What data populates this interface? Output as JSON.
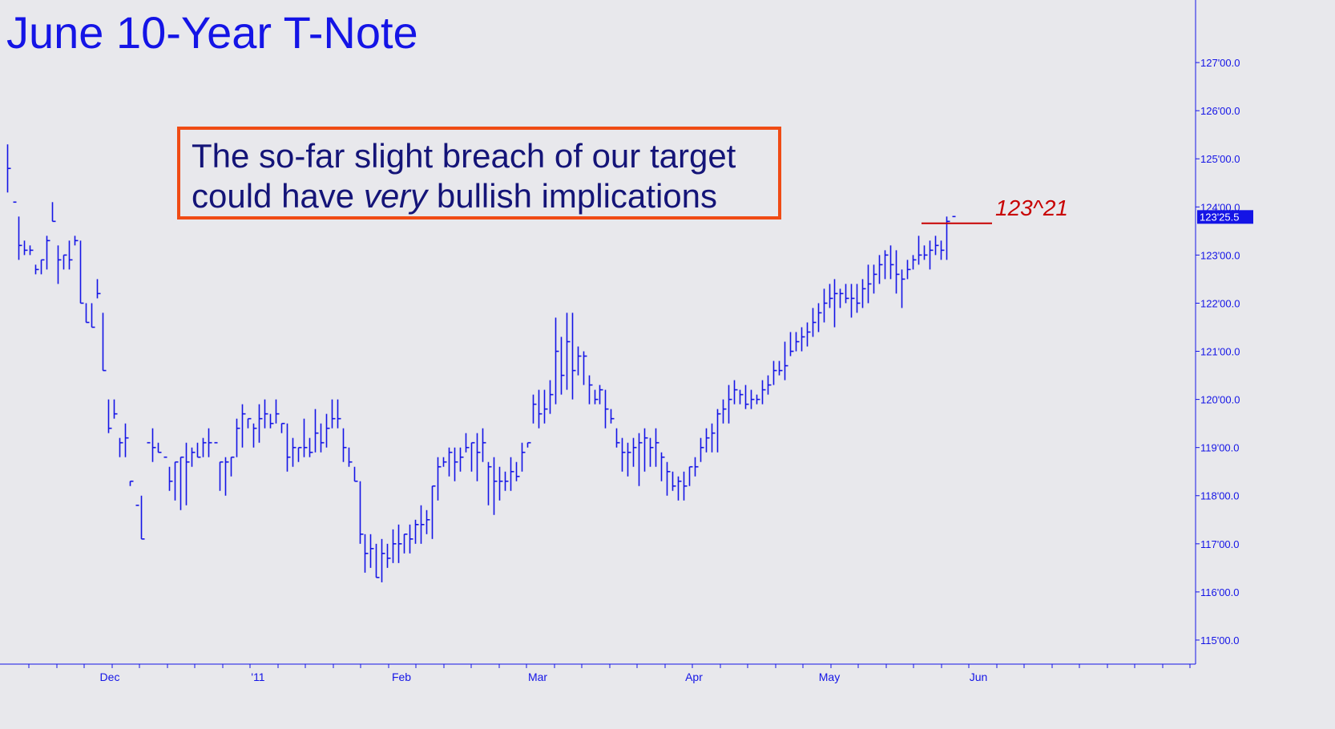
{
  "chart_data": {
    "type": "ohlc",
    "title": "June 10-Year T-Note",
    "annotation_line1": "The so-far slight breach of our target",
    "annotation_line2_pre": "could have ",
    "annotation_line2_em": "very",
    "annotation_line2_post": " bullish implications",
    "target_label": "123^21",
    "target_value": 123.66,
    "last_price_label": "123'25.5",
    "last_price": 123.8,
    "y_ticks": [
      {
        "value": 115,
        "label": "115'00.0"
      },
      {
        "value": 116,
        "label": "116'00.0"
      },
      {
        "value": 117,
        "label": "117'00.0"
      },
      {
        "value": 118,
        "label": "118'00.0"
      },
      {
        "value": 119,
        "label": "119'00.0"
      },
      {
        "value": 120,
        "label": "120'00.0"
      },
      {
        "value": 121,
        "label": "121'00.0"
      },
      {
        "value": 122,
        "label": "122'00.0"
      },
      {
        "value": 123,
        "label": "123'00.0"
      },
      {
        "value": 124,
        "label": "124'00.0"
      },
      {
        "value": 125,
        "label": "125'00.0"
      },
      {
        "value": 126,
        "label": "126'00.0"
      },
      {
        "value": 127,
        "label": "127'00.0"
      }
    ],
    "x_labels": [
      "Dec",
      "'11",
      "Feb",
      "Mar",
      "Apr",
      "May",
      "Jun"
    ],
    "ylim": [
      114.5,
      128.3
    ],
    "colors": {
      "bars": "#1414e6",
      "target": "#c80000",
      "box": "#f04b14",
      "text": "#141478",
      "background": "#e8e8ec"
    },
    "bars": [
      [
        125.3,
        124.3,
        124.8
      ],
      [
        124.1,
        124.1,
        124.1
      ],
      [
        123.8,
        122.9,
        123.2
      ],
      [
        123.3,
        123.0,
        123.1
      ],
      [
        123.2,
        123.0,
        123.1
      ],
      [
        122.8,
        122.6,
        122.7
      ],
      [
        122.9,
        122.6,
        122.9
      ],
      [
        123.4,
        122.7,
        123.3
      ],
      [
        124.1,
        123.7,
        123.7
      ],
      [
        123.2,
        122.4,
        122.9
      ],
      [
        123.0,
        122.7,
        123.0
      ],
      [
        123.3,
        122.7,
        122.9
      ],
      [
        123.4,
        123.2,
        123.3
      ],
      [
        123.3,
        122.0,
        122.0
      ],
      [
        122.0,
        121.6,
        121.6
      ],
      [
        122.0,
        121.5,
        121.5
      ],
      [
        122.5,
        122.1,
        122.2
      ],
      [
        121.8,
        120.6,
        120.6
      ],
      [
        120.0,
        119.3,
        119.4
      ],
      [
        120.0,
        119.6,
        119.7
      ],
      [
        119.2,
        118.8,
        119.1
      ],
      [
        119.5,
        118.8,
        119.2
      ],
      [
        118.3,
        118.2,
        118.3
      ],
      [
        117.8,
        117.8,
        117.8
      ],
      [
        118.0,
        117.1,
        117.1
      ],
      [
        119.1,
        119.1,
        119.1
      ],
      [
        119.4,
        118.7,
        119.0
      ],
      [
        119.1,
        118.9,
        118.9
      ],
      [
        118.8,
        118.8,
        118.8
      ],
      [
        118.6,
        118.1,
        118.3
      ],
      [
        118.7,
        117.9,
        118.7
      ],
      [
        118.8,
        117.7,
        118.8
      ],
      [
        119.1,
        117.8,
        118.7
      ],
      [
        119.0,
        118.6,
        118.9
      ],
      [
        119.1,
        118.8,
        118.8
      ],
      [
        119.2,
        118.8,
        119.1
      ],
      [
        119.4,
        118.8,
        119.1
      ],
      [
        119.1,
        119.1,
        119.1
      ],
      [
        118.7,
        118.1,
        118.7
      ],
      [
        118.8,
        118.0,
        118.7
      ],
      [
        118.8,
        118.4,
        118.8
      ],
      [
        119.6,
        118.8,
        119.4
      ],
      [
        119.9,
        119.0,
        119.7
      ],
      [
        119.6,
        119.4,
        119.6
      ],
      [
        119.5,
        119.0,
        119.4
      ],
      [
        119.9,
        119.1,
        119.6
      ],
      [
        120.0,
        119.4,
        119.7
      ],
      [
        119.7,
        119.4,
        119.5
      ],
      [
        120.0,
        119.5,
        119.7
      ],
      [
        119.5,
        119.3,
        119.5
      ],
      [
        119.5,
        118.5,
        118.8
      ],
      [
        119.2,
        118.6,
        119.0
      ],
      [
        119.0,
        118.7,
        119.0
      ],
      [
        119.6,
        118.8,
        119.0
      ],
      [
        119.2,
        118.8,
        118.9
      ],
      [
        119.8,
        118.9,
        119.3
      ],
      [
        119.5,
        118.9,
        119.1
      ],
      [
        119.7,
        119.0,
        119.4
      ],
      [
        120.0,
        119.4,
        119.6
      ],
      [
        120.0,
        119.4,
        119.6
      ],
      [
        119.4,
        118.7,
        119.0
      ],
      [
        119.0,
        118.6,
        118.7
      ],
      [
        118.6,
        118.3,
        118.3
      ],
      [
        118.3,
        117.0,
        117.2
      ],
      [
        117.2,
        116.4,
        116.8
      ],
      [
        117.2,
        116.5,
        116.9
      ],
      [
        117.0,
        116.3,
        116.3
      ],
      [
        117.1,
        116.2,
        116.8
      ],
      [
        117.0,
        116.5,
        116.7
      ],
      [
        117.3,
        116.6,
        117.0
      ],
      [
        117.4,
        116.6,
        117.0
      ],
      [
        117.2,
        116.8,
        117.2
      ],
      [
        117.4,
        116.8,
        117.1
      ],
      [
        117.5,
        117.0,
        117.4
      ],
      [
        117.8,
        117.0,
        117.4
      ],
      [
        117.7,
        117.2,
        117.5
      ],
      [
        118.2,
        117.1,
        118.2
      ],
      [
        118.8,
        117.9,
        118.6
      ],
      [
        118.8,
        118.6,
        118.7
      ],
      [
        119.0,
        118.4,
        118.9
      ],
      [
        119.0,
        118.3,
        118.7
      ],
      [
        119.0,
        118.5,
        118.8
      ],
      [
        119.3,
        118.9,
        119.0
      ],
      [
        119.1,
        118.5,
        119.1
      ],
      [
        119.3,
        118.3,
        118.9
      ],
      [
        119.4,
        118.7,
        119.1
      ],
      [
        118.7,
        117.8,
        118.6
      ],
      [
        118.8,
        117.6,
        118.3
      ],
      [
        118.6,
        117.9,
        118.3
      ],
      [
        118.5,
        118.1,
        118.3
      ],
      [
        118.8,
        118.1,
        118.5
      ],
      [
        118.7,
        118.3,
        118.4
      ],
      [
        119.1,
        118.5,
        118.9
      ],
      [
        119.1,
        119.0,
        119.1
      ],
      [
        120.1,
        119.5,
        119.9
      ],
      [
        120.2,
        119.4,
        119.7
      ],
      [
        120.2,
        119.5,
        119.8
      ],
      [
        120.4,
        119.7,
        120.1
      ],
      [
        121.7,
        119.9,
        121.0
      ],
      [
        121.3,
        120.1,
        120.5
      ],
      [
        121.8,
        120.2,
        121.2
      ],
      [
        121.8,
        120.0,
        120.6
      ],
      [
        121.1,
        120.5,
        120.9
      ],
      [
        121.0,
        120.3,
        120.9
      ],
      [
        120.5,
        119.9,
        120.3
      ],
      [
        120.2,
        119.9,
        120.0
      ],
      [
        120.3,
        119.9,
        120.2
      ],
      [
        120.2,
        119.4,
        119.8
      ],
      [
        119.8,
        119.5,
        119.6
      ],
      [
        119.4,
        119.0,
        119.1
      ],
      [
        119.2,
        118.5,
        118.9
      ],
      [
        119.1,
        118.4,
        118.9
      ],
      [
        119.2,
        118.6,
        119.0
      ],
      [
        119.3,
        118.2,
        119.1
      ],
      [
        119.4,
        118.5,
        119.2
      ],
      [
        119.2,
        118.6,
        119.0
      ],
      [
        119.4,
        118.6,
        119.1
      ],
      [
        118.9,
        118.3,
        118.8
      ],
      [
        118.7,
        118.0,
        118.5
      ],
      [
        118.5,
        118.1,
        118.2
      ],
      [
        118.4,
        117.9,
        118.3
      ],
      [
        118.5,
        117.9,
        118.2
      ],
      [
        118.6,
        118.2,
        118.6
      ],
      [
        118.8,
        118.4,
        118.6
      ],
      [
        119.2,
        118.7,
        119.0
      ],
      [
        119.4,
        118.9,
        119.2
      ],
      [
        119.5,
        118.9,
        119.3
      ],
      [
        119.8,
        118.9,
        119.7
      ],
      [
        120.0,
        119.5,
        119.8
      ],
      [
        120.3,
        119.5,
        120.0
      ],
      [
        120.4,
        119.9,
        120.2
      ],
      [
        120.2,
        119.9,
        120.1
      ],
      [
        120.3,
        119.8,
        119.9
      ],
      [
        120.2,
        119.8,
        120.0
      ],
      [
        120.1,
        119.9,
        120.0
      ],
      [
        120.4,
        119.9,
        120.2
      ],
      [
        120.5,
        120.1,
        120.3
      ],
      [
        120.8,
        120.3,
        120.6
      ],
      [
        120.8,
        120.5,
        120.6
      ],
      [
        121.2,
        120.4,
        120.7
      ],
      [
        121.4,
        120.9,
        121.0
      ],
      [
        121.4,
        121.0,
        121.2
      ],
      [
        121.5,
        121.0,
        121.3
      ],
      [
        121.6,
        121.1,
        121.4
      ],
      [
        121.9,
        121.3,
        121.6
      ],
      [
        122.0,
        121.4,
        121.8
      ],
      [
        122.3,
        121.6,
        122.0
      ],
      [
        122.4,
        121.9,
        122.1
      ],
      [
        122.5,
        121.5,
        122.2
      ],
      [
        122.3,
        121.9,
        122.2
      ],
      [
        122.4,
        122.0,
        122.1
      ],
      [
        122.4,
        121.7,
        122.1
      ],
      [
        122.4,
        121.8,
        122.0
      ],
      [
        122.5,
        121.9,
        122.3
      ],
      [
        122.8,
        122.0,
        122.4
      ],
      [
        122.8,
        122.2,
        122.6
      ],
      [
        123.0,
        122.4,
        122.8
      ],
      [
        123.1,
        122.5,
        123.0
      ],
      [
        123.2,
        122.5,
        122.8
      ],
      [
        123.1,
        122.2,
        122.6
      ],
      [
        122.7,
        121.9,
        122.5
      ],
      [
        122.9,
        122.5,
        122.7
      ],
      [
        123.0,
        122.7,
        122.9
      ],
      [
        123.4,
        122.8,
        123.0
      ],
      [
        123.2,
        122.9,
        123.0
      ],
      [
        123.3,
        122.7,
        123.1
      ],
      [
        123.4,
        123.0,
        123.2
      ],
      [
        123.3,
        122.9,
        123.1
      ],
      [
        123.8,
        122.9,
        123.7
      ],
      [
        123.8,
        123.8,
        123.8
      ]
    ]
  }
}
